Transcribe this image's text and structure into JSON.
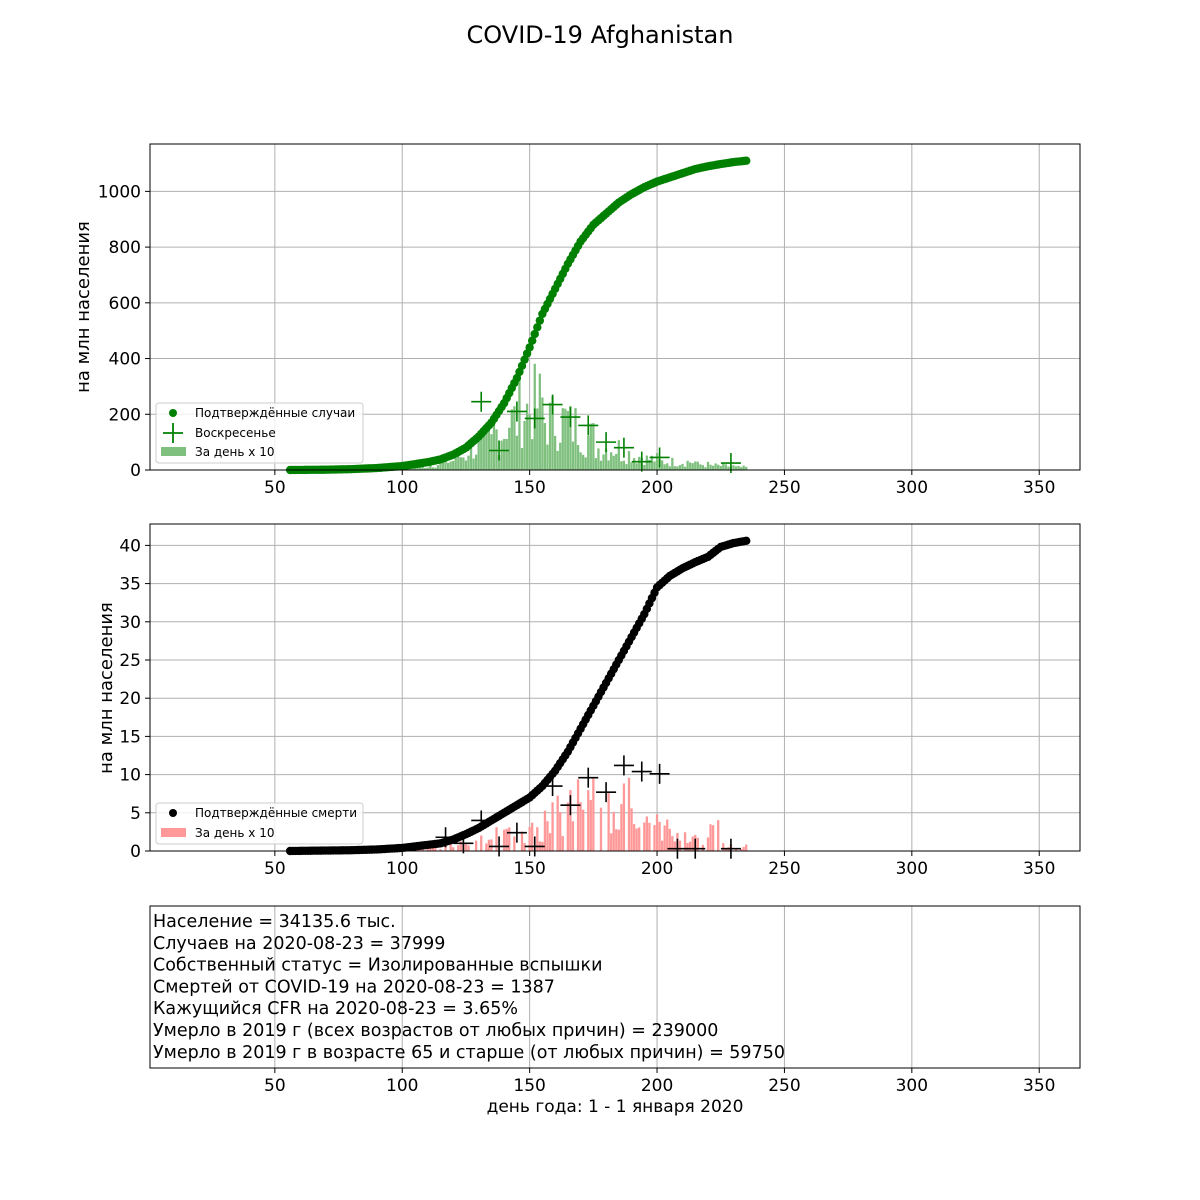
{
  "figure": {
    "title": "COVID-19 Afghanistan",
    "xlabel": "день года: 1 - 1 января 2020"
  },
  "colors": {
    "cases": "#008000",
    "cases_bars": "#7fc07f",
    "deaths": "#000000",
    "deaths_bars": "#ff9999",
    "grid": "#b0b0b0"
  },
  "chart_data": [
    {
      "type": "scatter",
      "panel": "cases",
      "ylabel": "на млн населения",
      "xlim": [
        1,
        366
      ],
      "ylim": [
        0,
        1170
      ],
      "xticks": [
        50,
        100,
        150,
        200,
        250,
        300,
        350
      ],
      "yticks": [
        0,
        200,
        400,
        600,
        800,
        1000
      ],
      "grid": true,
      "legend_position": "lower-left",
      "legend": [
        "Подтверждённые случаи",
        "Воскресенье",
        "За день х 10"
      ],
      "cumulative_keypoints": [
        [
          56,
          0
        ],
        [
          70,
          1
        ],
        [
          80,
          3
        ],
        [
          90,
          7
        ],
        [
          100,
          14
        ],
        [
          110,
          28
        ],
        [
          115,
          38
        ],
        [
          120,
          55
        ],
        [
          125,
          80
        ],
        [
          130,
          120
        ],
        [
          135,
          170
        ],
        [
          140,
          240
        ],
        [
          145,
          330
        ],
        [
          150,
          440
        ],
        [
          155,
          560
        ],
        [
          160,
          650
        ],
        [
          165,
          740
        ],
        [
          170,
          820
        ],
        [
          175,
          880
        ],
        [
          180,
          920
        ],
        [
          185,
          960
        ],
        [
          190,
          990
        ],
        [
          195,
          1015
        ],
        [
          200,
          1035
        ],
        [
          205,
          1050
        ],
        [
          210,
          1065
        ],
        [
          215,
          1080
        ],
        [
          220,
          1090
        ],
        [
          225,
          1098
        ],
        [
          230,
          1105
        ],
        [
          235,
          1110
        ]
      ],
      "sunday_markers": [
        [
          131,
          245
        ],
        [
          138,
          70
        ],
        [
          145,
          210
        ],
        [
          152,
          185
        ],
        [
          159,
          235
        ],
        [
          166,
          190
        ],
        [
          173,
          160
        ],
        [
          180,
          100
        ],
        [
          187,
          80
        ],
        [
          194,
          30
        ],
        [
          201,
          45
        ],
        [
          229,
          25
        ]
      ]
    },
    {
      "type": "scatter",
      "panel": "deaths",
      "ylabel": "на млн населения",
      "xlim": [
        1,
        366
      ],
      "ylim": [
        0,
        42.8
      ],
      "xticks": [
        50,
        100,
        150,
        200,
        250,
        300,
        350
      ],
      "yticks": [
        0,
        5,
        10,
        15,
        20,
        25,
        30,
        35,
        40
      ],
      "grid": true,
      "legend_position": "lower-left",
      "legend": [
        "Подтверждённые смерти",
        "За день х 10"
      ],
      "cumulative_keypoints": [
        [
          56,
          0
        ],
        [
          80,
          0.1
        ],
        [
          90,
          0.2
        ],
        [
          100,
          0.4
        ],
        [
          110,
          0.8
        ],
        [
          115,
          1.0
        ],
        [
          120,
          1.5
        ],
        [
          125,
          2.2
        ],
        [
          130,
          3.0
        ],
        [
          135,
          4.0
        ],
        [
          140,
          5.0
        ],
        [
          145,
          6.0
        ],
        [
          150,
          7.0
        ],
        [
          155,
          8.5
        ],
        [
          160,
          10.5
        ],
        [
          165,
          13.0
        ],
        [
          170,
          16.0
        ],
        [
          175,
          19.0
        ],
        [
          180,
          22.0
        ],
        [
          185,
          25.0
        ],
        [
          190,
          28.0
        ],
        [
          195,
          31.0
        ],
        [
          200,
          34.5
        ],
        [
          205,
          36.0
        ],
        [
          210,
          37.0
        ],
        [
          215,
          37.8
        ],
        [
          220,
          38.5
        ],
        [
          225,
          39.8
        ],
        [
          230,
          40.3
        ],
        [
          235,
          40.6
        ]
      ],
      "sunday_markers": [
        [
          117,
          1.8
        ],
        [
          124,
          1.0
        ],
        [
          131,
          4.0
        ],
        [
          138,
          0.6
        ],
        [
          145,
          2.4
        ],
        [
          152,
          0.6
        ],
        [
          159,
          8.5
        ],
        [
          166,
          6.0
        ],
        [
          173,
          9.6
        ],
        [
          180,
          7.7
        ],
        [
          187,
          11.2
        ],
        [
          194,
          10.4
        ],
        [
          201,
          10.1
        ],
        [
          208,
          0.3
        ],
        [
          215,
          0.3
        ],
        [
          229,
          0.3
        ]
      ]
    }
  ],
  "info_box": {
    "lines": [
      "Население = 34135.6 тыс.",
      "Случаев на 2020-08-23 = 37999",
      "Собственный статус = Изолированные вспышки",
      "Смертей от COVID-19 на 2020-08-23 = 1387",
      "Кажущийся CFR на 2020-08-23 = 3.65%",
      "Умерло в 2019 г (всех возрастов от любых причин) = 239000",
      "Умерло в 2019 г в возрасте 65 и старше (от любых причин) = 59750"
    ],
    "xticks": [
      50,
      100,
      150,
      200,
      250,
      300,
      350
    ]
  }
}
